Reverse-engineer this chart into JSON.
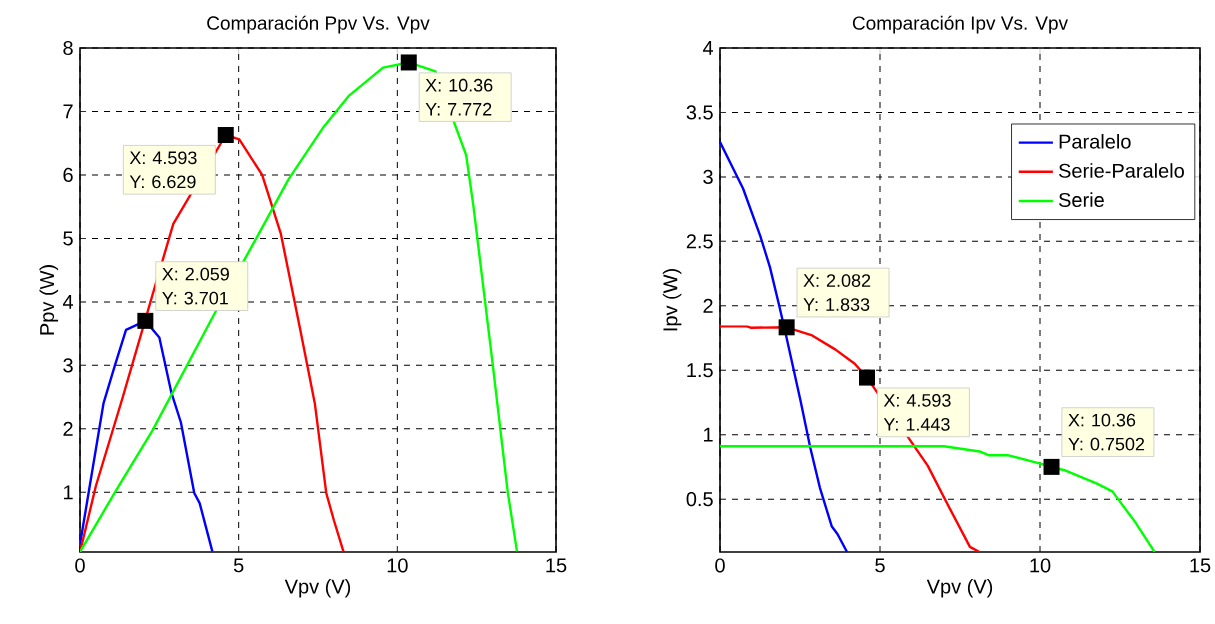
{
  "chart_data": [
    {
      "type": "line",
      "title": "Comparación Ppv Vs. Vpv",
      "xlabel": "Vpv (V)",
      "ylabel": "Ppv (W)",
      "xlim": [
        0,
        15
      ],
      "ylim": [
        0.06,
        8
      ],
      "xticks": [
        0,
        5,
        10,
        15
      ],
      "yticks": [
        1,
        2,
        3,
        4,
        5,
        6,
        7,
        8
      ],
      "grid": true,
      "series": [
        {
          "color": "#0000ff",
          "x": [
            0,
            0.74,
            1.1,
            1.45,
            2.059,
            2.5,
            2.88,
            3.18,
            3.6,
            3.77,
            4.17
          ],
          "values": [
            0.18,
            2.4,
            3.0,
            3.56,
            3.701,
            3.44,
            2.57,
            2.1,
            0.99,
            0.83,
            0.07
          ]
        },
        {
          "color": "#ff0000",
          "x": [
            0,
            0.5,
            1.33,
            2.059,
            2.29,
            2.94,
            4.593,
            5.02,
            5.74,
            6.33,
            6.93,
            7.4,
            7.76,
            8.0,
            8.3
          ],
          "values": [
            0.06,
            1.1,
            2.47,
            3.72,
            4.12,
            5.23,
            6.629,
            6.56,
            6.0,
            5.07,
            3.59,
            2.4,
            0.99,
            0.56,
            0.07
          ]
        },
        {
          "color": "#00ff00",
          "x": [
            0,
            1.1,
            2.29,
            4.19,
            5.62,
            6.57,
            7.64,
            8.48,
            9.55,
            10.36,
            11.2,
            12.17,
            12.4,
            13.0,
            13.48,
            13.77
          ],
          "values": [
            0.06,
            1.0,
            1.98,
            3.77,
            5.06,
            5.93,
            6.73,
            7.25,
            7.69,
            7.772,
            7.63,
            6.31,
            5.5,
            3.04,
            1.0,
            0.07
          ]
        }
      ],
      "annotations": [
        {
          "text": "X: 4.593 Y: 6.629",
          "x": 4.593,
          "y": 6.629
        },
        {
          "text": "X: 2.059 Y: 3.701",
          "x": 2.059,
          "y": 3.701
        },
        {
          "text": "X: 10.36 Y: 7.772",
          "x": 10.36,
          "y": 7.772
        }
      ]
    },
    {
      "type": "line",
      "title": "Comparación Ipv Vs. Vpv",
      "xlabel": "Vpv (V)",
      "ylabel": "Ipv (W)",
      "xlim": [
        0,
        15
      ],
      "ylim": [
        0.09,
        4
      ],
      "xticks": [
        0,
        5,
        10,
        15
      ],
      "yticks": [
        0.5,
        1,
        1.5,
        2,
        2.5,
        3,
        3.5,
        4
      ],
      "grid": true,
      "legend": "top right",
      "series": [
        {
          "name": "Paralelo",
          "color": "#0000ff",
          "x": [
            0,
            0.72,
            1.26,
            1.56,
            1.86,
            2.082,
            2.52,
            2.82,
            3.12,
            3.49,
            3.67,
            3.97
          ],
          "values": [
            3.27,
            2.91,
            2.54,
            2.3,
            1.99,
            1.75,
            1.26,
            0.9,
            0.59,
            0.29,
            0.23,
            0.09
          ]
        },
        {
          "name": "Serie-Paralelo",
          "color": "#ff0000",
          "x": [
            0,
            0.84,
            0.96,
            2.082,
            2.88,
            3.61,
            4.21,
            4.593,
            6.49,
            7.09,
            7.81,
            8.11
          ],
          "values": [
            1.84,
            1.84,
            1.83,
            1.833,
            1.77,
            1.66,
            1.55,
            1.443,
            0.76,
            0.47,
            0.13,
            0.09
          ]
        },
        {
          "name": "Serie",
          "color": "#00ff00",
          "x": [
            0,
            4.81,
            7.0,
            8.11,
            8.41,
            9.01,
            10.1,
            10.36,
            10.82,
            11.78,
            12.26,
            12.98,
            13.58
          ],
          "values": [
            0.91,
            0.91,
            0.91,
            0.87,
            0.84,
            0.84,
            0.77,
            0.7502,
            0.72,
            0.62,
            0.56,
            0.32,
            0.09
          ]
        }
      ],
      "annotations": [
        {
          "text": "X: 2.082 Y: 1.833",
          "x": 2.082,
          "y": 1.833
        },
        {
          "text": "X: 4.593 Y: 1.443",
          "x": 4.593,
          "y": 1.443
        },
        {
          "text": "X: 10.36 Y: 0.7502",
          "x": 10.36,
          "y": 0.7502
        }
      ]
    }
  ]
}
